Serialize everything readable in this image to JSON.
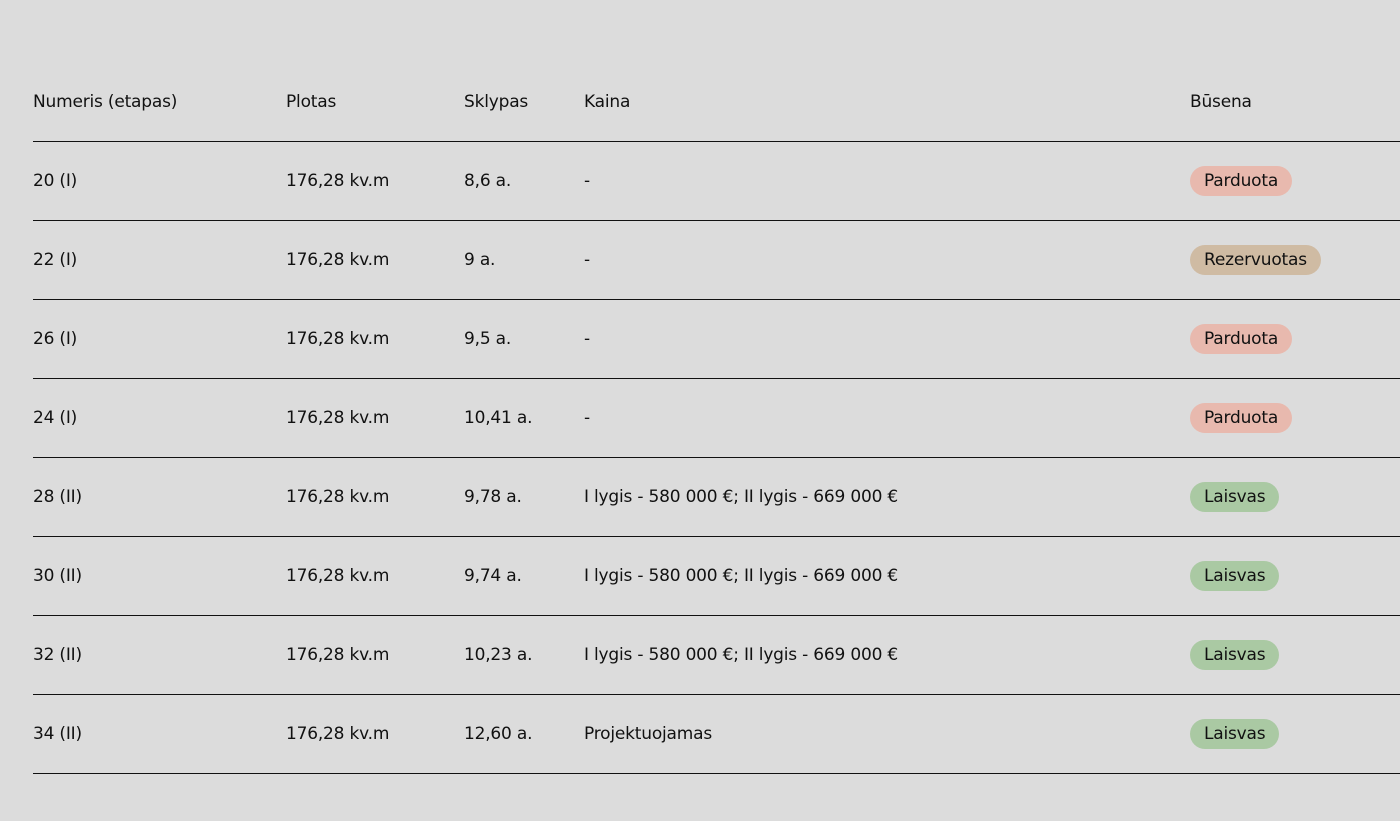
{
  "headers": [
    "Numeris (etapas)",
    "Plotas",
    "Sklypas",
    "Kaina",
    "Būsena"
  ],
  "status_colors": {
    "Parduota": "#e8b9ae",
    "Rezervuotas": "#cfbba3",
    "Laisvas": "#aac9a3"
  },
  "rows": [
    {
      "numeris": "20 (I)",
      "plotas": "176,28 kv.m",
      "sklypas": "8,6 a.",
      "kaina": "-",
      "busena": "Parduota"
    },
    {
      "numeris": "22 (I)",
      "plotas": "176,28 kv.m",
      "sklypas": "9 a.",
      "kaina": "-",
      "busena": "Rezervuotas"
    },
    {
      "numeris": "26 (I)",
      "plotas": "176,28 kv.m",
      "sklypas": "9,5 a.",
      "kaina": "-",
      "busena": "Parduota"
    },
    {
      "numeris": "24 (I)",
      "plotas": "176,28 kv.m",
      "sklypas": "10,41 a.",
      "kaina": "-",
      "busena": "Parduota"
    },
    {
      "numeris": "28 (II)",
      "plotas": "176,28 kv.m",
      "sklypas": "9,78 a.",
      "kaina": "I lygis - 580 000 €; II lygis - 669 000 €",
      "busena": "Laisvas"
    },
    {
      "numeris": "30 (II)",
      "plotas": "176,28 kv.m",
      "sklypas": "9,74 a.",
      "kaina": "I lygis - 580 000 €; II lygis - 669 000 €",
      "busena": "Laisvas"
    },
    {
      "numeris": "32 (II)",
      "plotas": "176,28 kv.m",
      "sklypas": "10,23 a.",
      "kaina": "I lygis - 580 000 €; II lygis - 669 000 €",
      "busena": "Laisvas"
    },
    {
      "numeris": "34 (II)",
      "plotas": "176,28 kv.m",
      "sklypas": "12,60 a.",
      "kaina": "Projektuojamas",
      "busena": "Laisvas"
    }
  ]
}
